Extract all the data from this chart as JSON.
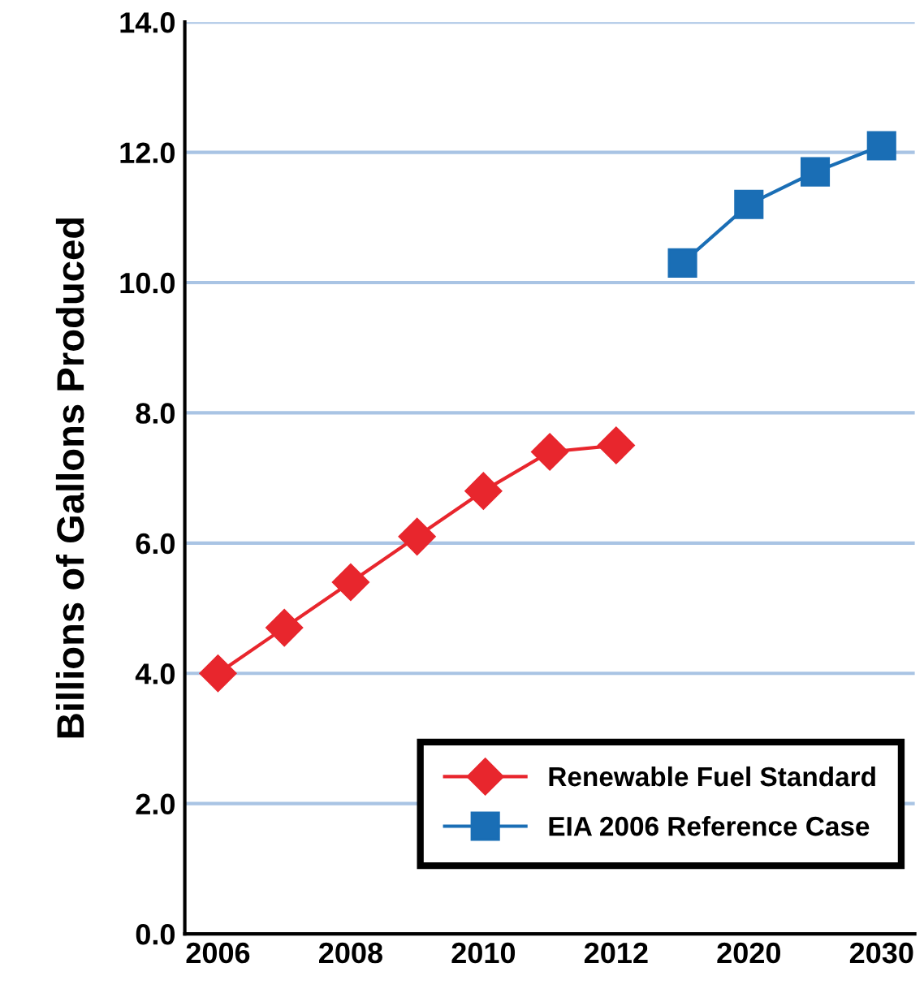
{
  "chart_data": {
    "type": "line",
    "ylabel": "Billions of Gallons Produced",
    "categories": [
      "2006",
      null,
      "2008",
      null,
      "2010",
      null,
      "2012",
      null,
      "2020",
      null,
      "2030"
    ],
    "ylim": [
      0,
      14
    ],
    "yticks": [
      {
        "value": 0,
        "label": "0.0"
      },
      {
        "value": 2,
        "label": "2.0"
      },
      {
        "value": 4,
        "label": "4.0"
      },
      {
        "value": 6,
        "label": "6.0"
      },
      {
        "value": 8,
        "label": "8.0"
      },
      {
        "value": 10,
        "label": "10.0"
      },
      {
        "value": 12,
        "label": "12.0"
      },
      {
        "value": 14,
        "label": "14.0"
      }
    ],
    "grid": "y",
    "legend": "bottom right",
    "series": [
      {
        "name": "Renewable Fuel Standard",
        "color": "#e8262d",
        "marker": "diamond",
        "values": [
          4.0,
          4.7,
          5.4,
          6.1,
          6.8,
          7.4,
          7.5,
          null,
          null,
          null,
          null
        ]
      },
      {
        "name": "EIA 2006 Reference Case",
        "color": "#1a6eb5",
        "marker": "square",
        "values": [
          null,
          null,
          null,
          null,
          null,
          null,
          null,
          10.3,
          11.2,
          11.7,
          12.1
        ]
      }
    ]
  }
}
